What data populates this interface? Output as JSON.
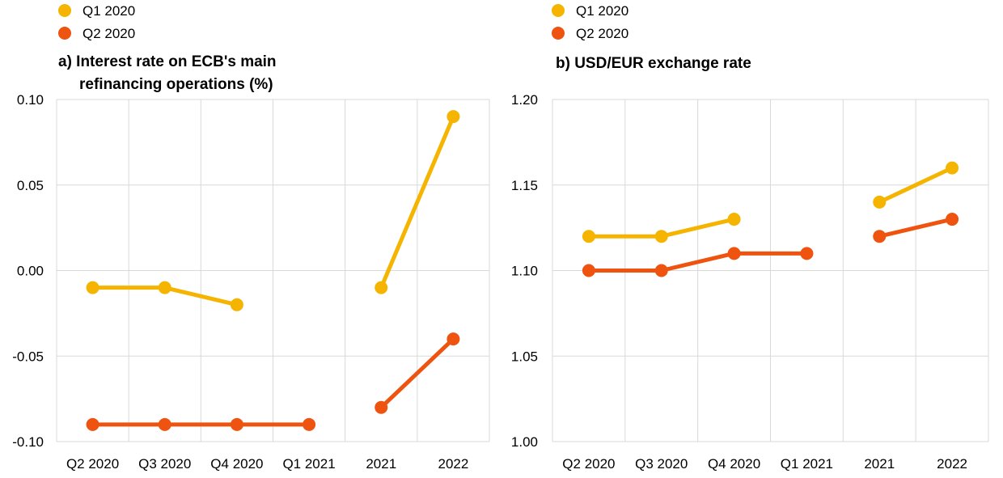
{
  "chart_data": [
    {
      "type": "line",
      "title": "a) Interest rate on ECB's main",
      "title_line2": "refinancing operations (%)",
      "categories": [
        "Q2 2020",
        "Q3 2020",
        "Q4 2020",
        "Q1 2021",
        "2021",
        "2022"
      ],
      "ylim": [
        -0.1,
        0.1
      ],
      "yticks": [
        "0.10",
        "0.05",
        "0.00",
        "-0.05",
        "-0.10"
      ],
      "legend": [
        "Q1 2020",
        "Q2 2020"
      ],
      "series": [
        {
          "name": "Q1 2020",
          "color": "#f5b400",
          "values": [
            -0.01,
            -0.01,
            -0.02,
            null,
            -0.01,
            0.09
          ]
        },
        {
          "name": "Q2 2020",
          "color": "#ee5410",
          "values": [
            -0.09,
            -0.09,
            -0.09,
            -0.09,
            -0.08,
            -0.04
          ]
        }
      ]
    },
    {
      "type": "line",
      "title": "b) USD/EUR exchange rate",
      "title_line2": "",
      "categories": [
        "Q2 2020",
        "Q3 2020",
        "Q4 2020",
        "Q1 2021",
        "2021",
        "2022"
      ],
      "ylim": [
        1.0,
        1.2
      ],
      "yticks": [
        "1.20",
        "1.15",
        "1.10",
        "1.05",
        "1.00"
      ],
      "legend": [
        "Q1 2020",
        "Q2 2020"
      ],
      "series": [
        {
          "name": "Q1 2020",
          "color": "#f5b400",
          "values": [
            1.12,
            1.12,
            1.13,
            null,
            1.14,
            1.16
          ]
        },
        {
          "name": "Q2 2020",
          "color": "#ee5410",
          "values": [
            1.1,
            1.1,
            1.11,
            1.11,
            1.12,
            1.13
          ]
        }
      ]
    }
  ]
}
